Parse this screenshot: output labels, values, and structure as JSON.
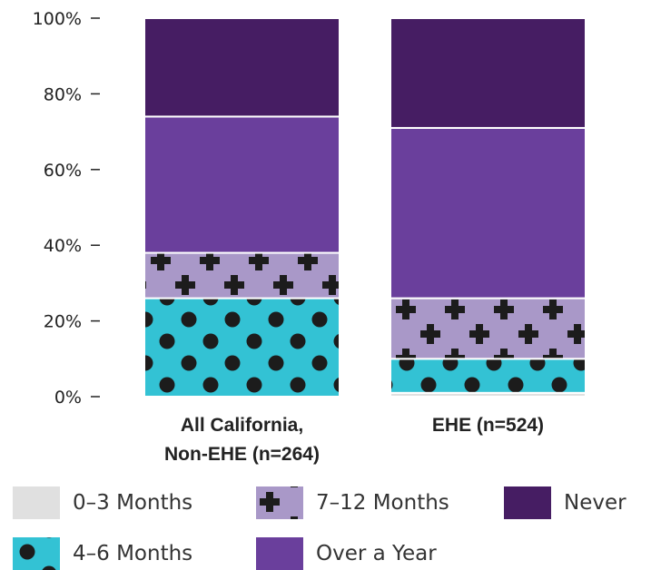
{
  "chart_data": {
    "type": "bar",
    "stacked": true,
    "categories": [
      [
        "All California,",
        "Non-EHE (n=264)"
      ],
      [
        "EHE (n=524)"
      ]
    ],
    "series": [
      {
        "name": "0–3 Months",
        "values": [
          0,
          1
        ],
        "color": "#e0e0e0",
        "pattern": "none"
      },
      {
        "name": "4–6 Months",
        "values": [
          26,
          9
        ],
        "color": "#33c2d4",
        "pattern": "dots"
      },
      {
        "name": "7–12 Months",
        "values": [
          12,
          16
        ],
        "color": "#a998c8",
        "pattern": "crosses"
      },
      {
        "name": "Over a Year",
        "values": [
          36,
          45
        ],
        "color": "#6a3f9c",
        "pattern": "none"
      },
      {
        "name": "Never",
        "values": [
          26,
          29
        ],
        "color": "#461d63",
        "pattern": "none"
      }
    ],
    "ylim": [
      0,
      100
    ],
    "yticks": [
      "0%",
      "20%",
      "40%",
      "60%",
      "80%",
      "100%"
    ],
    "ytick_values": [
      0,
      20,
      40,
      60,
      80,
      100
    ],
    "grid": false,
    "legend_position": "bottom"
  }
}
